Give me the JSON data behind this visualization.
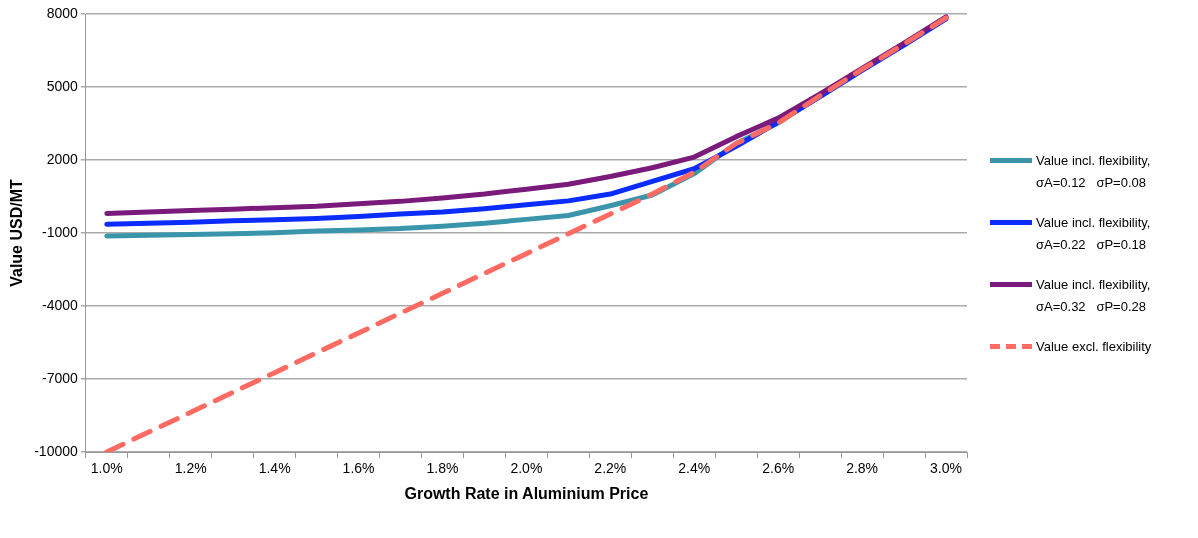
{
  "chart_data": {
    "type": "line",
    "xlabel": "Growth Rate in Aluminium Price",
    "ylabel": "Value USD/MT",
    "categories": [
      "1.0%",
      null,
      "1.2%",
      null,
      "1.4%",
      null,
      "1.6%",
      null,
      "1.8%",
      null,
      "2.0%",
      null,
      "2.2%",
      null,
      "2.4%",
      null,
      "2.6%",
      null,
      "2.8%",
      null,
      "3.0%"
    ],
    "ylim": [
      -10000,
      8000
    ],
    "yticks": [
      -10000,
      -7000,
      -4000,
      -1000,
      2000,
      5000,
      8000
    ],
    "grid": "y",
    "legend": "right",
    "marker": "none",
    "series": [
      {
        "name": "Value incl. flexibility, σA=0.12   σP=0.08",
        "color": "#3a95ab",
        "values": [
          -1120,
          -1090,
          -1060,
          -1030,
          -990,
          -920,
          -880,
          -820,
          -720,
          -600,
          -440,
          -280,
          120,
          560,
          1440,
          2680,
          3520,
          4640,
          null,
          null,
          null
        ]
      },
      {
        "name": "Value incl. flexibility, σA=0.22   σP=0.18",
        "color": "#0a2cff",
        "values": [
          -640,
          -600,
          -560,
          -500,
          -460,
          -400,
          -320,
          -220,
          -140,
          0,
          160,
          320,
          600,
          1120,
          1640,
          2560,
          3560,
          4600,
          5680,
          6720,
          7800
        ]
      },
      {
        "name": "Value incl. flexibility, σA=0.32   σP=0.28",
        "color": "#7a1a7a",
        "values": [
          -200,
          -140,
          -80,
          -20,
          40,
          100,
          200,
          300,
          440,
          600,
          800,
          1000,
          1320,
          1680,
          2120,
          2960,
          3720,
          4720,
          5760,
          6800,
          7880
        ]
      },
      {
        "name": "Value excl. flexibility",
        "color": "#ff6b63",
        "line_style": "dashed",
        "values": [
          -10000,
          -9180,
          -8370,
          -7550,
          -6740,
          -5920,
          -5110,
          -4290,
          -3480,
          -2660,
          -1850,
          -1030,
          -220,
          600,
          1500,
          2680,
          3520,
          4640,
          5720,
          6760,
          7840
        ]
      }
    ]
  }
}
